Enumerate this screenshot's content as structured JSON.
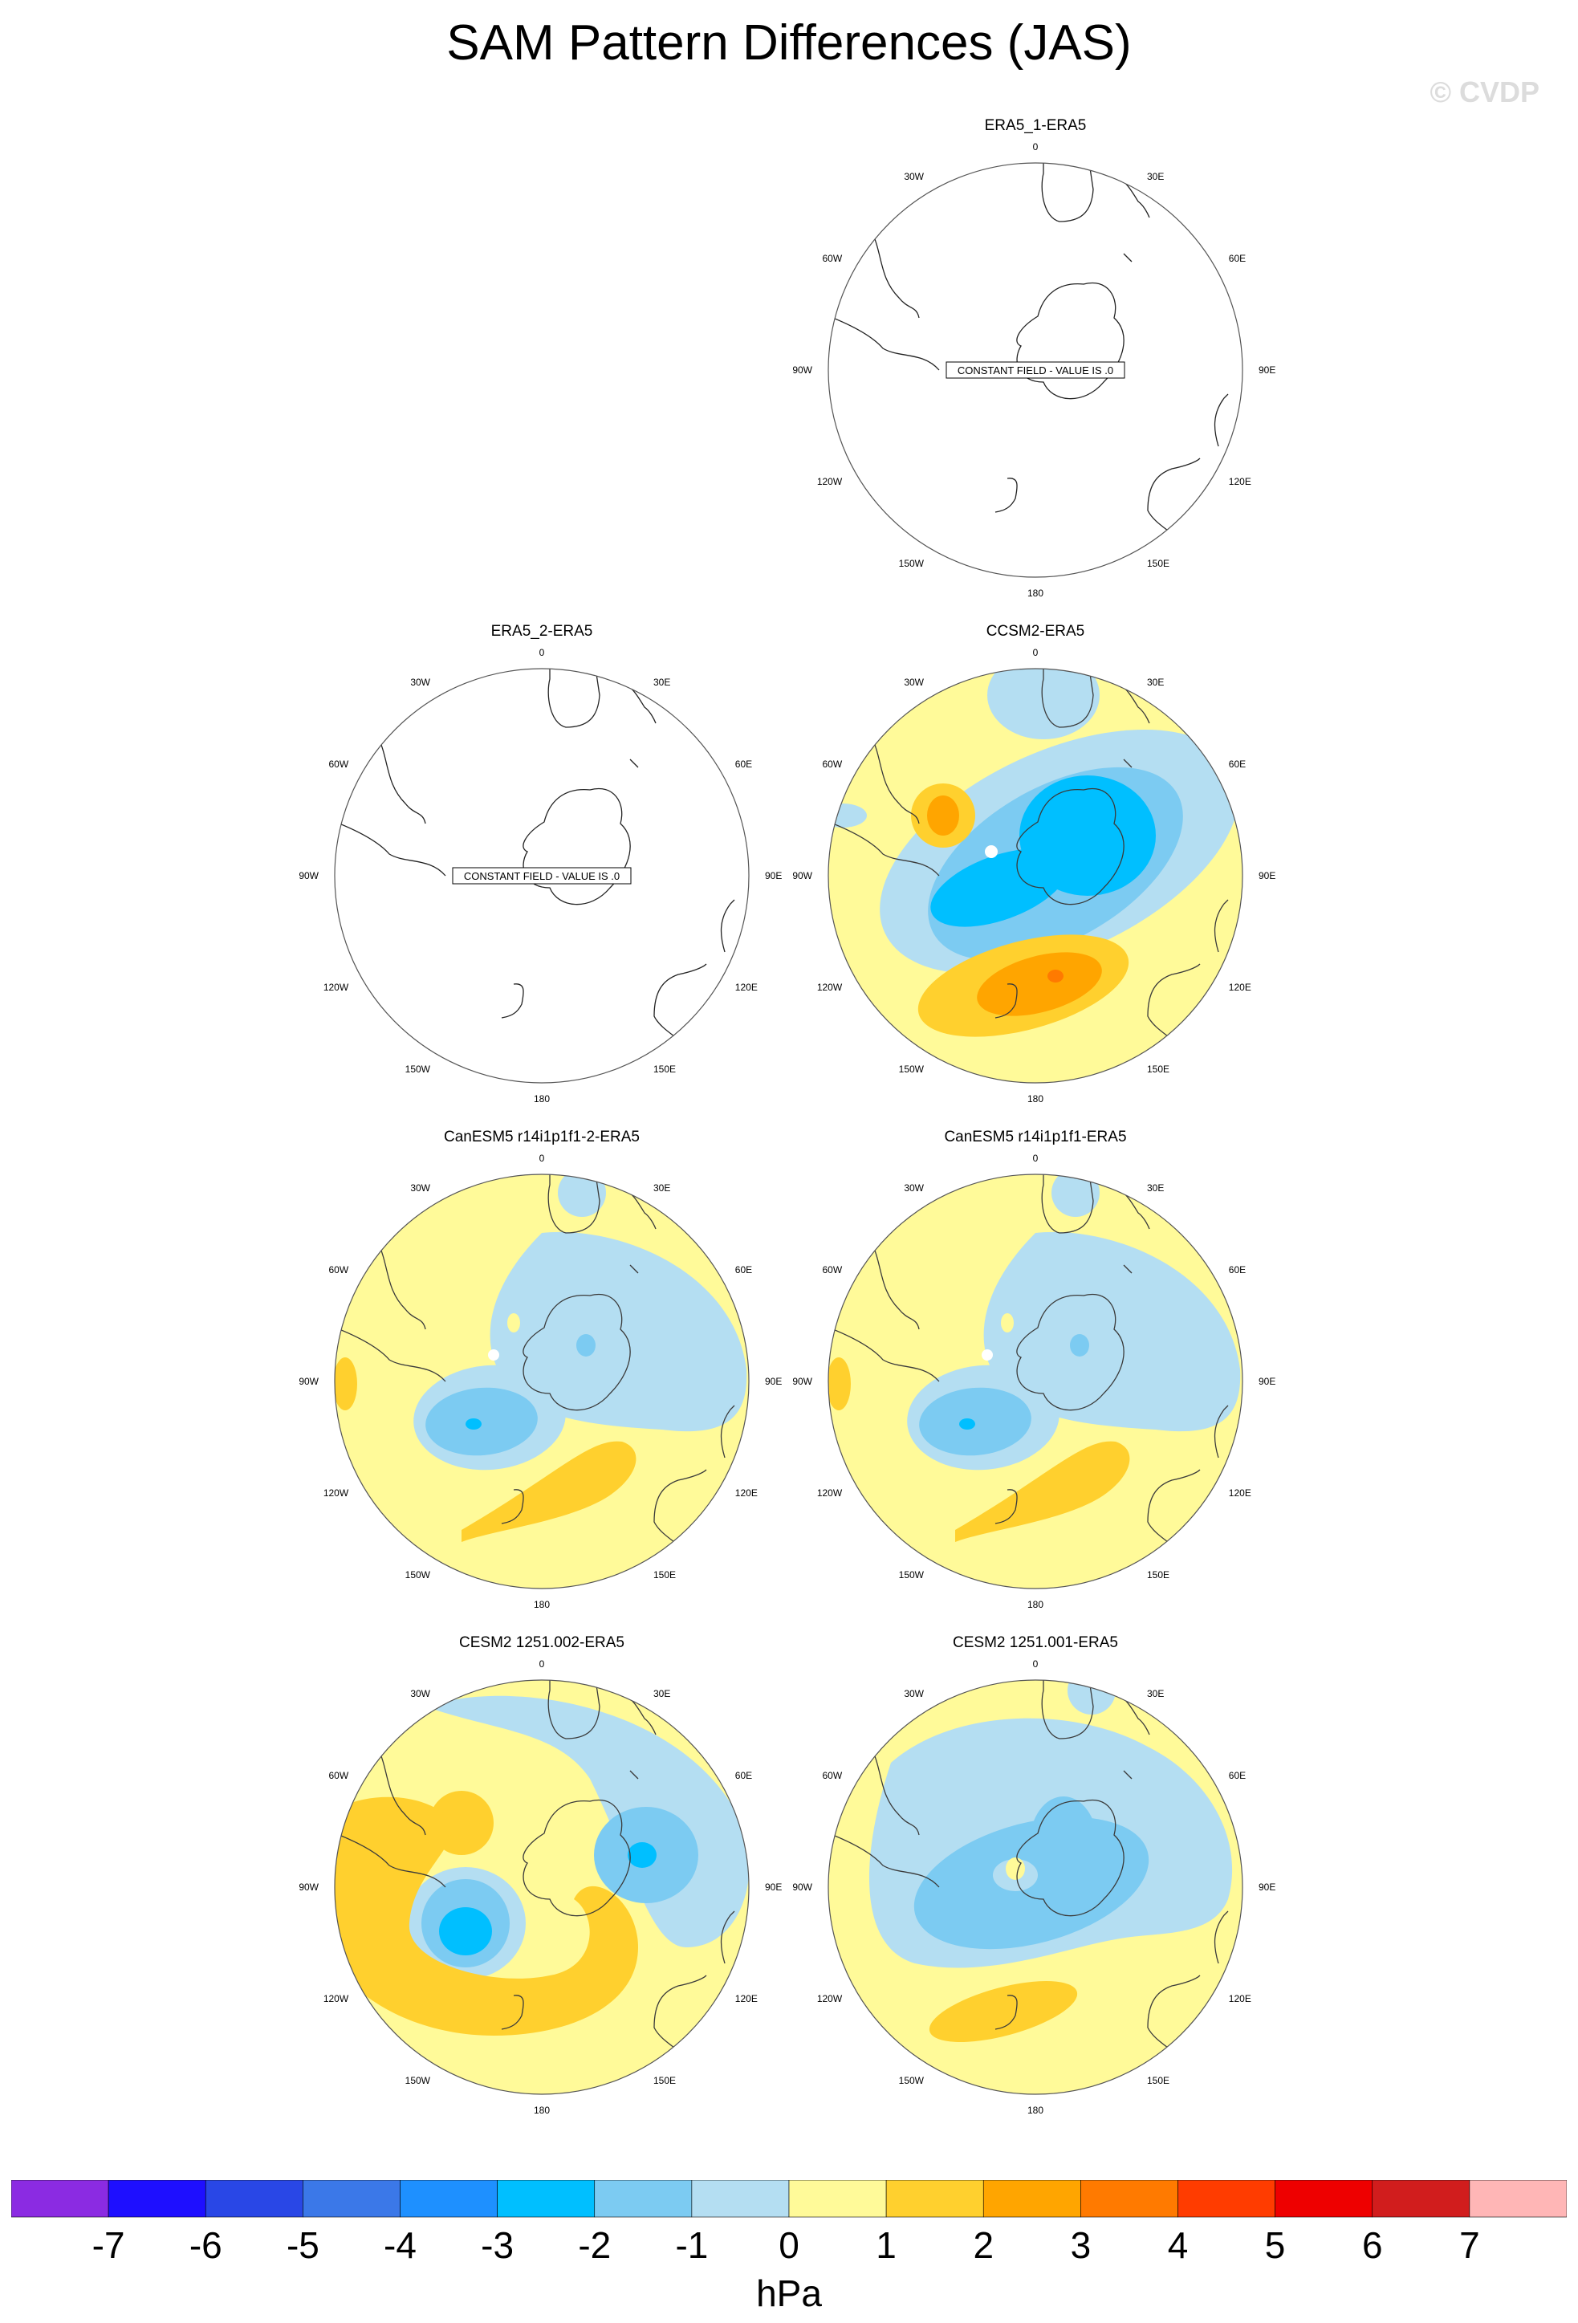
{
  "title": "SAM Pattern Differences (JAS)",
  "watermark": "© CVDP",
  "lon_labels": [
    "0",
    "30E",
    "60E",
    "90E",
    "120E",
    "150E",
    "180",
    "150W",
    "120W",
    "90W",
    "60W",
    "30W"
  ],
  "constant_field_text": "CONSTANT FIELD - VALUE IS .0",
  "panels": [
    {
      "title": "ERA5_1-ERA5",
      "pattern": "constant"
    },
    {
      "title": "ERA5_2-ERA5",
      "pattern": "constant"
    },
    {
      "title": "CCSM2-ERA5",
      "pattern": "ccsm2"
    },
    {
      "title": "CanESM5 r14i1p1f1-2-ERA5",
      "pattern": "canesm"
    },
    {
      "title": "CanESM5 r14i1p1f1-ERA5",
      "pattern": "canesm"
    },
    {
      "title": "CESM2 1251.002-ERA5",
      "pattern": "cesm2a"
    },
    {
      "title": "CESM2 1251.001-ERA5",
      "pattern": "cesm2b"
    }
  ],
  "colorbar": {
    "colors": [
      "#8b2be2",
      "#1e0fff",
      "#2947e6",
      "#3b78e8",
      "#1e90ff",
      "#00bfff",
      "#7ccbf2",
      "#b4def2",
      "#fffa99",
      "#ffd02e",
      "#ffa500",
      "#ff7a00",
      "#ff3c00",
      "#ee0000",
      "#d11d1d",
      "#ffb6b6"
    ],
    "labels": [
      "-7",
      "-6",
      "-5",
      "-4",
      "-3",
      "-2",
      "-1",
      "0",
      "1",
      "2",
      "3",
      "4",
      "5",
      "6",
      "7"
    ],
    "unit": "hPa"
  }
}
